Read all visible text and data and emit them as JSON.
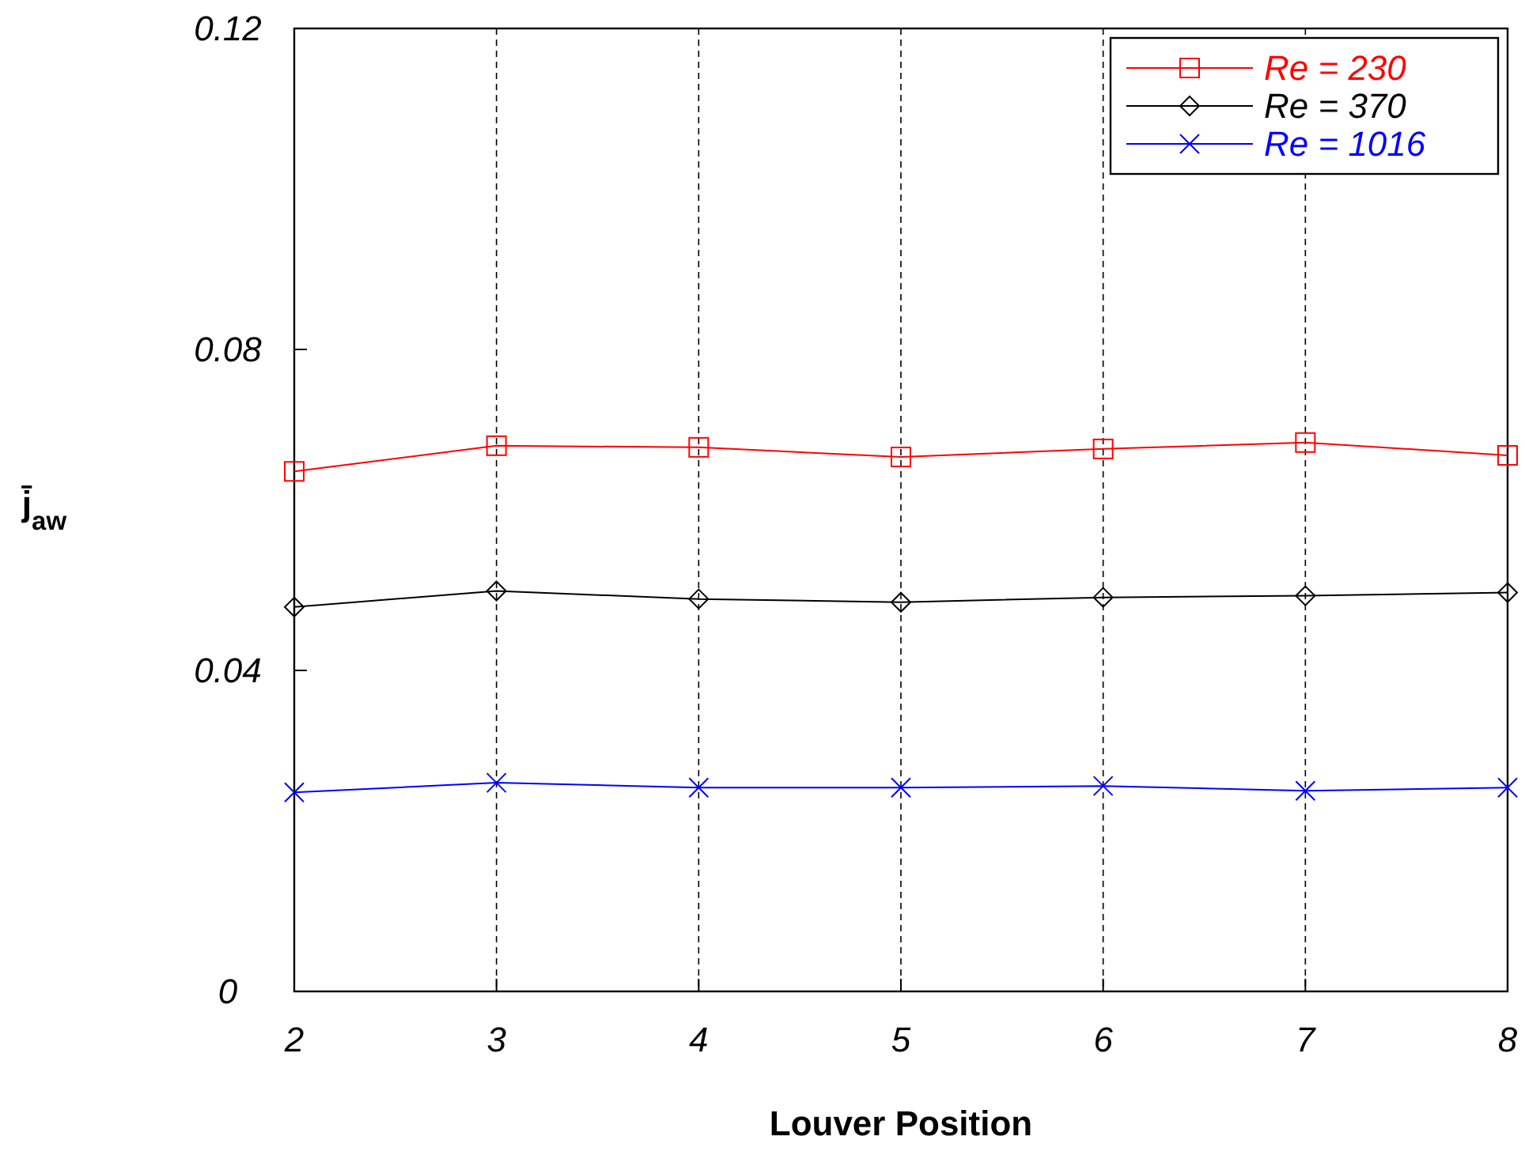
{
  "chart_data": {
    "type": "line",
    "xlabel": "Louver Position",
    "ylabel": "j̄$_{aw}$",
    "x": [
      2,
      3,
      4,
      5,
      6,
      7,
      8
    ],
    "series": [
      {
        "name": "Re = 230",
        "color": "#ff0000",
        "marker": "square",
        "values": [
          0.0648,
          0.068,
          0.0678,
          0.0666,
          0.0676,
          0.0684,
          0.0668
        ]
      },
      {
        "name": "Re = 370",
        "color": "#000000",
        "marker": "diamond",
        "values": [
          0.0479,
          0.0499,
          0.0489,
          0.0485,
          0.0491,
          0.0493,
          0.0497
        ]
      },
      {
        "name": "Re = 1016",
        "color": "#0000ff",
        "marker": "cross",
        "values": [
          0.0248,
          0.026,
          0.0254,
          0.0254,
          0.0256,
          0.025,
          0.0254
        ]
      }
    ],
    "xlim": [
      2,
      8
    ],
    "xticks": [
      2,
      3,
      4,
      5,
      6,
      7,
      8
    ],
    "ylim": [
      0,
      0.12
    ],
    "yticks": [
      0,
      0.04,
      0.08,
      0.12
    ],
    "grid": "x",
    "legend": "top right",
    "line_style": "solid"
  }
}
